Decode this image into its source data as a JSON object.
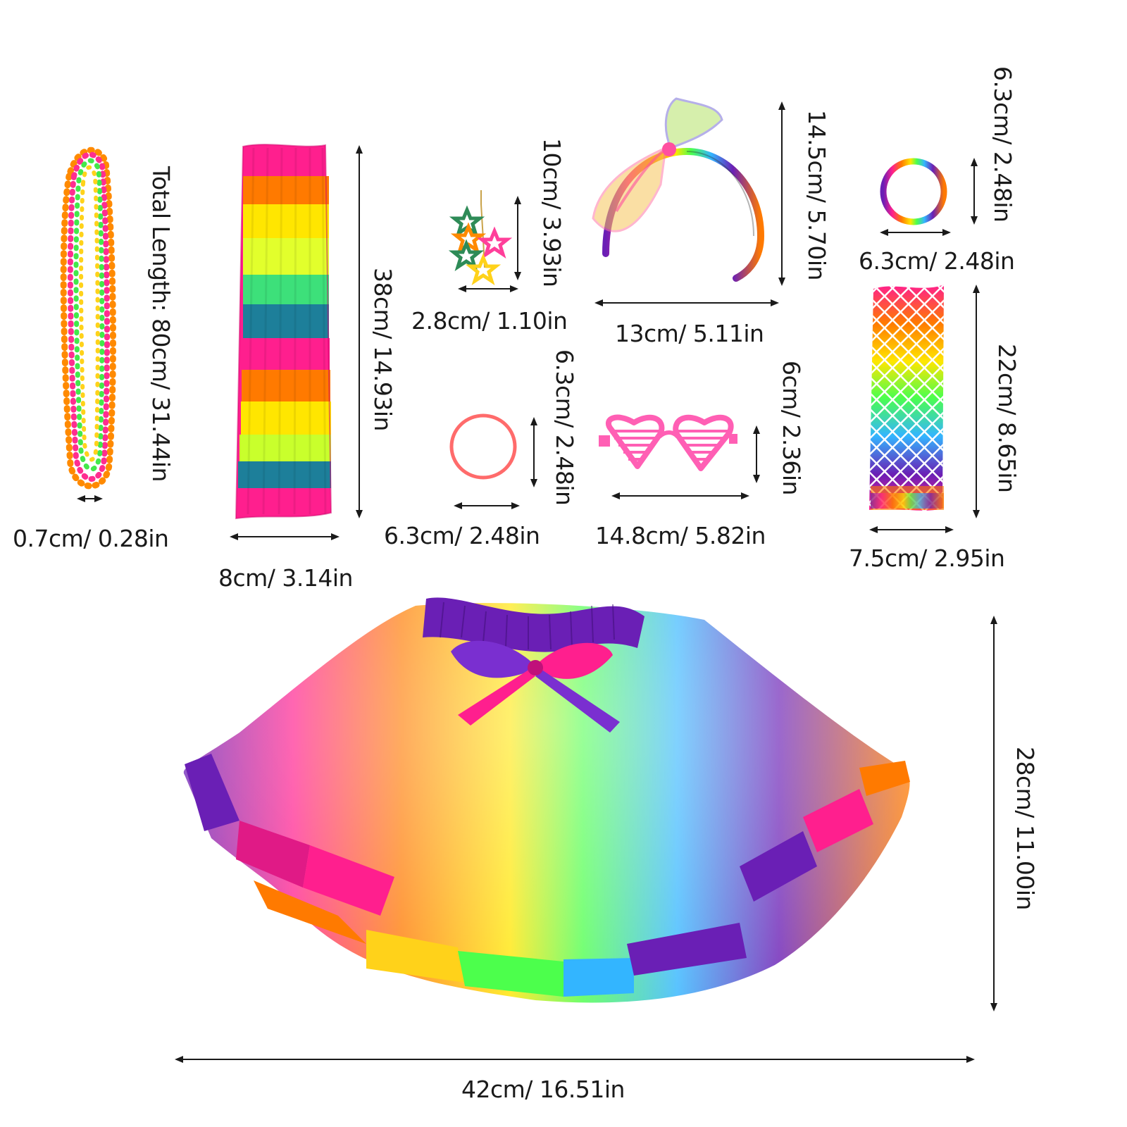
{
  "items": {
    "necklace": {
      "length_label": "Total Length: 80cm/ 31.44in",
      "width_label": "0.7cm/ 0.28in"
    },
    "leg_warmer": {
      "height_label": "38cm/ 14.93in",
      "width_label": "8cm/ 3.14in"
    },
    "earring": {
      "height_label": "10cm/ 3.93in",
      "width_label": "2.8cm/ 1.10in"
    },
    "headband": {
      "height_label": "14.5cm/ 5.70in",
      "width_label": "13cm/ 5.11in"
    },
    "bracelet_top": {
      "height_label": "6.3cm/ 2.48in",
      "width_label": "6.3cm/ 2.48in"
    },
    "hair_tie": {
      "height_label": "6.3cm/ 2.48in",
      "width_label": "6.3cm/ 2.48in"
    },
    "glasses": {
      "height_label": "6cm/ 2.36in",
      "width_label": "14.8cm/ 5.82in"
    },
    "fishnet_glove": {
      "height_label": "22cm/ 8.65in",
      "width_label": "7.5cm/ 2.95in"
    },
    "tutu": {
      "height_label": "28cm/ 11.00in",
      "width_label": "42cm/ 16.51in"
    }
  },
  "colors": {
    "pink": "#ff1f8e",
    "orange": "#ff7a00",
    "yellow": "#ffe600",
    "green": "#4cff4c",
    "teal": "#1d7f9a",
    "blue": "#33b5ff",
    "purple": "#6a1fb5"
  }
}
